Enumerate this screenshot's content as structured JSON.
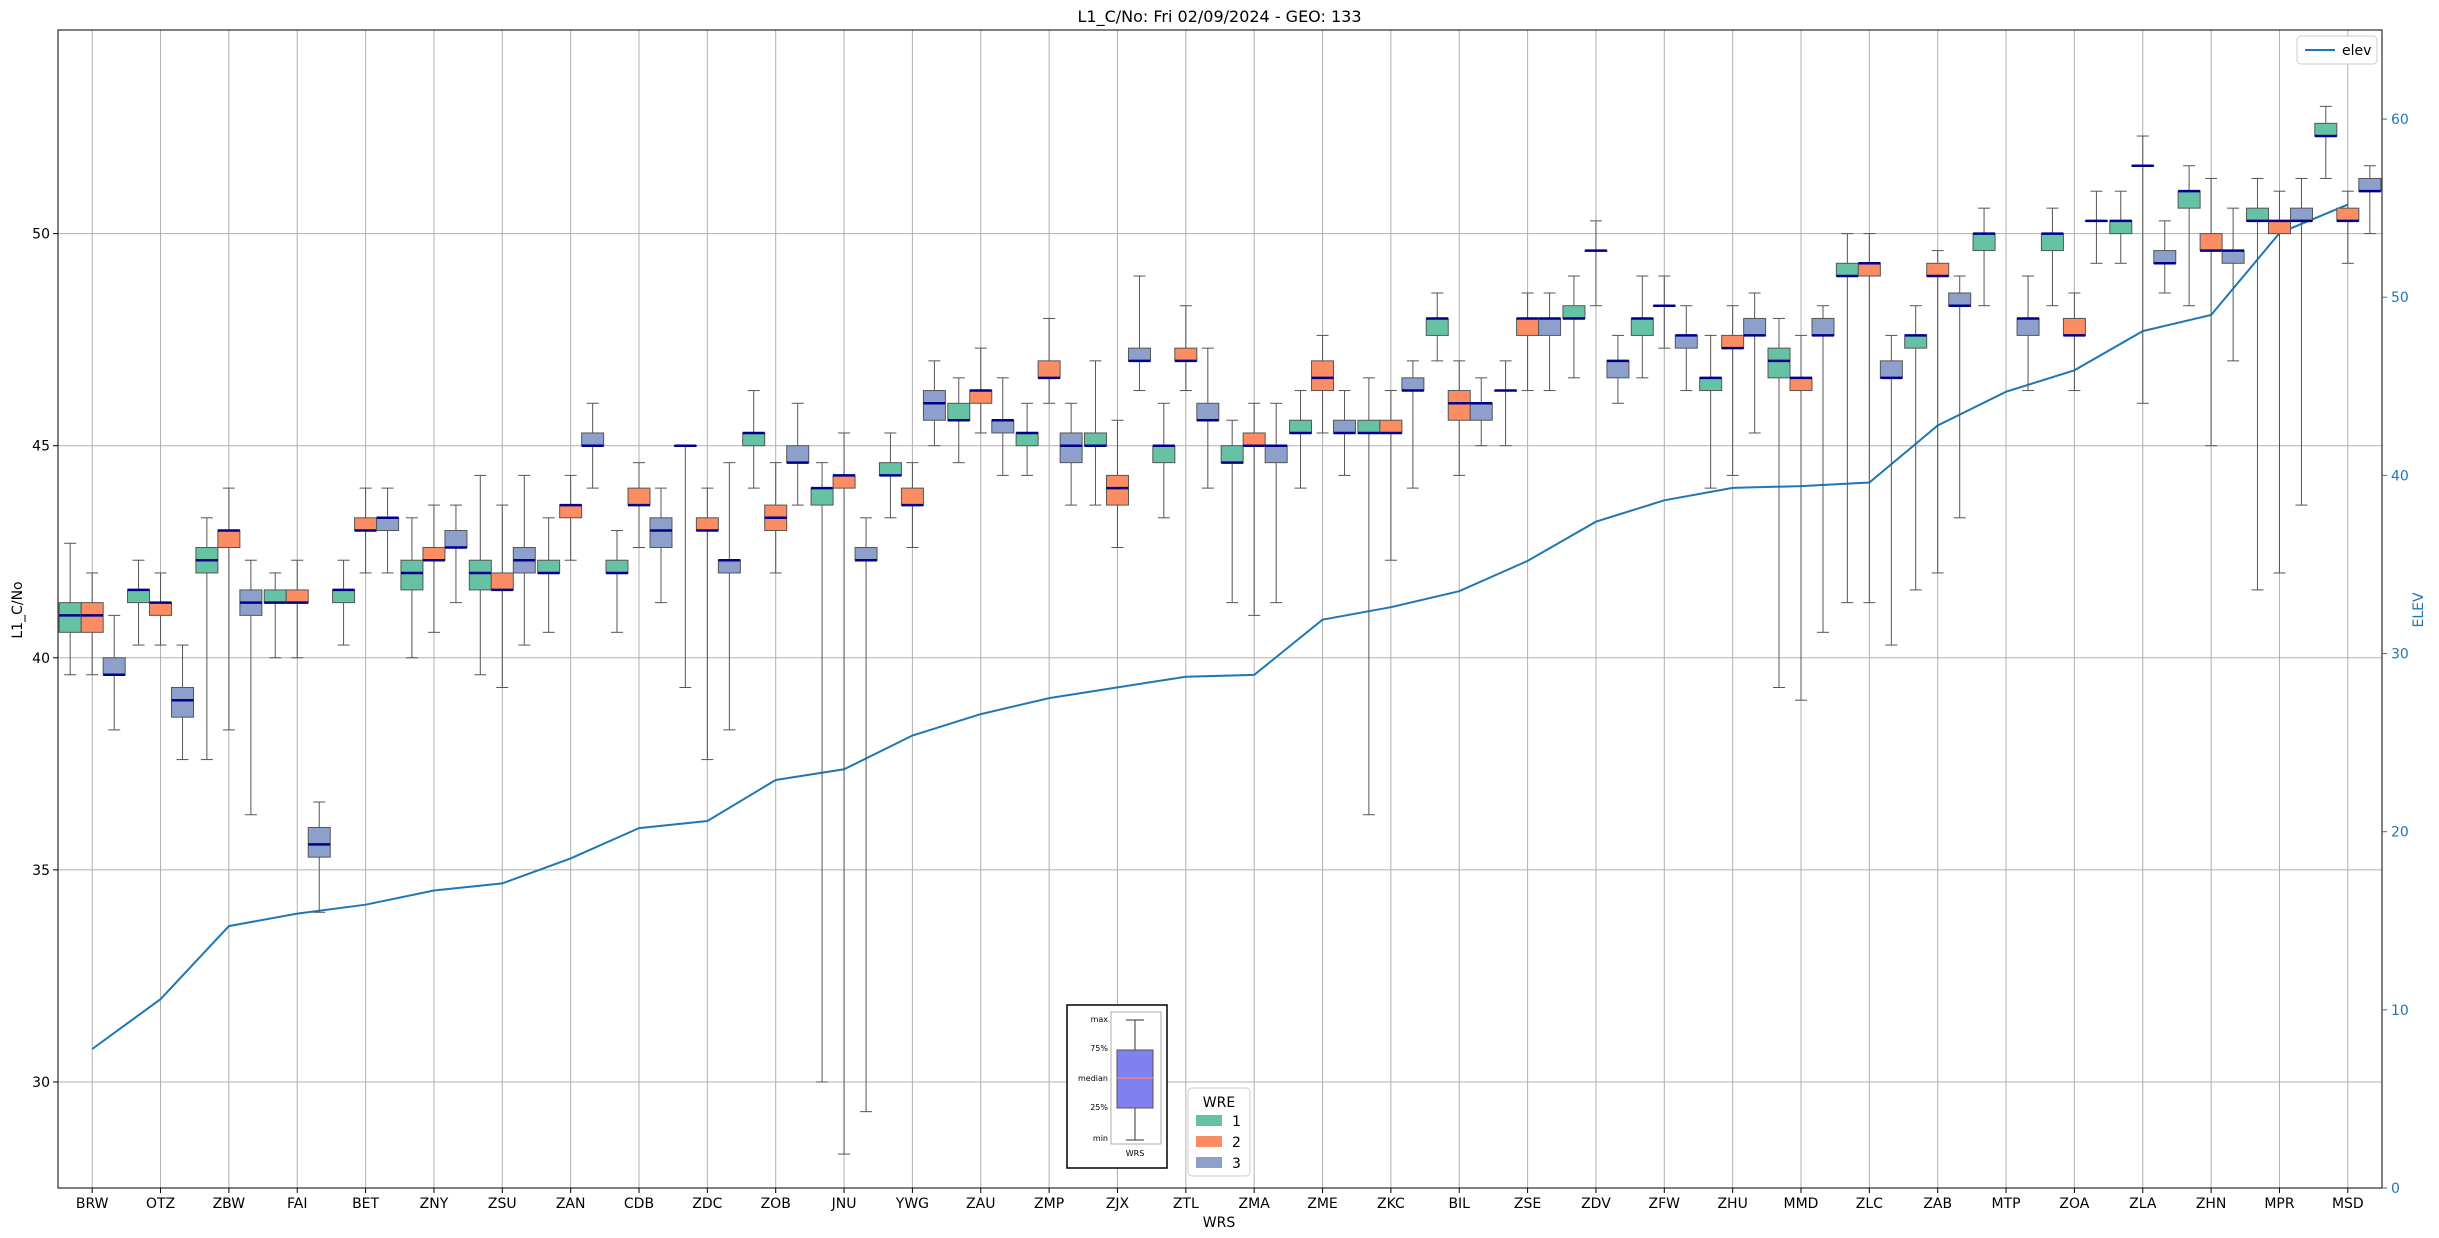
{
  "chart_data": {
    "type": "box",
    "title": "L1_C/No: Fri 02/09/2024 - GEO: 133",
    "xlabel": "WRS",
    "ylabel": "L1_C/No",
    "y2label": "ELEV",
    "ylim": [
      27.5,
      54.8
    ],
    "y2lim": [
      0,
      65
    ],
    "yticks": [
      30,
      35,
      40,
      45,
      50
    ],
    "y2ticks": [
      0,
      10,
      20,
      30,
      40,
      50,
      60
    ],
    "grid": true,
    "categories": [
      "BRW",
      "OTZ",
      "ZBW",
      "FAI",
      "BET",
      "ZNY",
      "ZSU",
      "ZAN",
      "CDB",
      "ZDC",
      "ZOB",
      "JNU",
      "YWG",
      "ZAU",
      "ZMP",
      "ZJX",
      "ZTL",
      "ZMA",
      "ZME",
      "ZKC",
      "BIL",
      "ZSE",
      "ZDV",
      "ZFW",
      "ZHU",
      "MMD",
      "ZLC",
      "ZAB",
      "MTP",
      "ZOA",
      "ZLA",
      "ZHN",
      "MPR",
      "MSD"
    ],
    "series_colors": {
      "1": "#66c2a5",
      "2": "#fc8d62",
      "3": "#8da0cb"
    },
    "median_color": "#00008b",
    "boxes": [
      {
        "station": "BRW",
        "wre": "1",
        "min": 39.6,
        "q1": 40.6,
        "median": 41.0,
        "q3": 41.3,
        "max": 42.7
      },
      {
        "station": "BRW",
        "wre": "2",
        "min": 39.6,
        "q1": 40.6,
        "median": 41.0,
        "q3": 41.3,
        "max": 42.0
      },
      {
        "station": "BRW",
        "wre": "3",
        "min": 38.3,
        "q1": 39.6,
        "median": 39.6,
        "q3": 40.0,
        "max": 41.0
      },
      {
        "station": "OTZ",
        "wre": "1",
        "min": 40.3,
        "q1": 41.3,
        "median": 41.6,
        "q3": 41.6,
        "max": 42.3
      },
      {
        "station": "OTZ",
        "wre": "2",
        "min": 40.3,
        "q1": 41.0,
        "median": 41.3,
        "q3": 41.3,
        "max": 42.0
      },
      {
        "station": "OTZ",
        "wre": "3",
        "min": 37.6,
        "q1": 38.6,
        "median": 39.0,
        "q3": 39.3,
        "max": 40.3
      },
      {
        "station": "ZBW",
        "wre": "1",
        "min": 37.6,
        "q1": 42.0,
        "median": 42.3,
        "q3": 42.6,
        "max": 43.3
      },
      {
        "station": "ZBW",
        "wre": "2",
        "min": 38.3,
        "q1": 42.6,
        "median": 43.0,
        "q3": 43.0,
        "max": 44.0
      },
      {
        "station": "ZBW",
        "wre": "3",
        "min": 36.3,
        "q1": 41.0,
        "median": 41.3,
        "q3": 41.6,
        "max": 42.3
      },
      {
        "station": "FAI",
        "wre": "1",
        "min": 40.0,
        "q1": 41.3,
        "median": 41.3,
        "q3": 41.6,
        "max": 42.0
      },
      {
        "station": "FAI",
        "wre": "2",
        "min": 40.0,
        "q1": 41.3,
        "median": 41.3,
        "q3": 41.6,
        "max": 42.3
      },
      {
        "station": "FAI",
        "wre": "3",
        "min": 34.0,
        "q1": 35.3,
        "median": 35.6,
        "q3": 36.0,
        "max": 36.6
      },
      {
        "station": "BET",
        "wre": "1",
        "min": 40.3,
        "q1": 41.3,
        "median": 41.6,
        "q3": 41.6,
        "max": 42.3
      },
      {
        "station": "BET",
        "wre": "2",
        "min": 42.0,
        "q1": 43.0,
        "median": 43.0,
        "q3": 43.3,
        "max": 44.0
      },
      {
        "station": "BET",
        "wre": "3",
        "min": 42.0,
        "q1": 43.0,
        "median": 43.3,
        "q3": 43.3,
        "max": 44.0
      },
      {
        "station": "ZNY",
        "wre": "1",
        "min": 40.0,
        "q1": 41.6,
        "median": 42.0,
        "q3": 42.3,
        "max": 43.3
      },
      {
        "station": "ZNY",
        "wre": "2",
        "min": 40.6,
        "q1": 42.3,
        "median": 42.3,
        "q3": 42.6,
        "max": 43.6
      },
      {
        "station": "ZNY",
        "wre": "3",
        "min": 41.3,
        "q1": 42.6,
        "median": 42.6,
        "q3": 43.0,
        "max": 43.6
      },
      {
        "station": "ZSU",
        "wre": "1",
        "min": 39.6,
        "q1": 41.6,
        "median": 42.0,
        "q3": 42.3,
        "max": 44.3
      },
      {
        "station": "ZSU",
        "wre": "2",
        "min": 39.3,
        "q1": 41.6,
        "median": 41.6,
        "q3": 42.0,
        "max": 43.6
      },
      {
        "station": "ZSU",
        "wre": "3",
        "min": 40.3,
        "q1": 42.0,
        "median": 42.3,
        "q3": 42.6,
        "max": 44.3
      },
      {
        "station": "ZAN",
        "wre": "1",
        "min": 40.6,
        "q1": 42.0,
        "median": 42.0,
        "q3": 42.3,
        "max": 43.3
      },
      {
        "station": "ZAN",
        "wre": "2",
        "min": 42.3,
        "q1": 43.3,
        "median": 43.6,
        "q3": 43.6,
        "max": 44.3
      },
      {
        "station": "ZAN",
        "wre": "3",
        "min": 44.0,
        "q1": 45.0,
        "median": 45.0,
        "q3": 45.3,
        "max": 46.0
      },
      {
        "station": "CDB",
        "wre": "1",
        "min": 40.6,
        "q1": 42.0,
        "median": 42.0,
        "q3": 42.3,
        "max": 43.0
      },
      {
        "station": "CDB",
        "wre": "2",
        "min": 42.6,
        "q1": 43.6,
        "median": 43.6,
        "q3": 44.0,
        "max": 44.6
      },
      {
        "station": "CDB",
        "wre": "3",
        "min": 41.3,
        "q1": 42.6,
        "median": 43.0,
        "q3": 43.3,
        "max": 44.0
      },
      {
        "station": "ZDC",
        "wre": "1",
        "min": 39.3,
        "q1": 45.0,
        "median": 45.0,
        "q3": 45.0,
        "max": 45.0
      },
      {
        "station": "ZDC",
        "wre": "2",
        "min": 37.6,
        "q1": 43.0,
        "median": 43.0,
        "q3": 43.3,
        "max": 44.0
      },
      {
        "station": "ZDC",
        "wre": "3",
        "min": 38.3,
        "q1": 42.0,
        "median": 42.3,
        "q3": 42.3,
        "max": 44.6
      },
      {
        "station": "ZOB",
        "wre": "1",
        "min": 44.0,
        "q1": 45.0,
        "median": 45.3,
        "q3": 45.3,
        "max": 46.3
      },
      {
        "station": "ZOB",
        "wre": "2",
        "min": 42.0,
        "q1": 43.0,
        "median": 43.3,
        "q3": 43.6,
        "max": 44.6
      },
      {
        "station": "ZOB",
        "wre": "3",
        "min": 43.6,
        "q1": 44.6,
        "median": 44.6,
        "q3": 45.0,
        "max": 46.0
      },
      {
        "station": "JNU",
        "wre": "1",
        "min": 30.0,
        "q1": 43.6,
        "median": 44.0,
        "q3": 44.0,
        "max": 44.6
      },
      {
        "station": "JNU",
        "wre": "2",
        "min": 28.3,
        "q1": 44.0,
        "median": 44.3,
        "q3": 44.3,
        "max": 45.3
      },
      {
        "station": "JNU",
        "wre": "3",
        "min": 29.3,
        "q1": 42.3,
        "median": 42.3,
        "q3": 42.6,
        "max": 43.3
      },
      {
        "station": "YWG",
        "wre": "1",
        "min": 43.3,
        "q1": 44.3,
        "median": 44.3,
        "q3": 44.6,
        "max": 45.3
      },
      {
        "station": "YWG",
        "wre": "2",
        "min": 42.6,
        "q1": 43.6,
        "median": 43.6,
        "q3": 44.0,
        "max": 44.6
      },
      {
        "station": "YWG",
        "wre": "3",
        "min": 45.0,
        "q1": 45.6,
        "median": 46.0,
        "q3": 46.3,
        "max": 47.0
      },
      {
        "station": "ZAU",
        "wre": "1",
        "min": 44.6,
        "q1": 45.6,
        "median": 45.6,
        "q3": 46.0,
        "max": 46.6
      },
      {
        "station": "ZAU",
        "wre": "2",
        "min": 45.3,
        "q1": 46.0,
        "median": 46.3,
        "q3": 46.3,
        "max": 47.3
      },
      {
        "station": "ZAU",
        "wre": "3",
        "min": 44.3,
        "q1": 45.3,
        "median": 45.6,
        "q3": 45.6,
        "max": 46.6
      },
      {
        "station": "ZMP",
        "wre": "1",
        "min": 44.3,
        "q1": 45.0,
        "median": 45.3,
        "q3": 45.3,
        "max": 46.0
      },
      {
        "station": "ZMP",
        "wre": "2",
        "min": 46.0,
        "q1": 46.6,
        "median": 46.6,
        "q3": 47.0,
        "max": 48.0
      },
      {
        "station": "ZMP",
        "wre": "3",
        "min": 43.6,
        "q1": 44.6,
        "median": 45.0,
        "q3": 45.3,
        "max": 46.0
      },
      {
        "station": "ZJX",
        "wre": "1",
        "min": 43.6,
        "q1": 45.0,
        "median": 45.0,
        "q3": 45.3,
        "max": 47.0
      },
      {
        "station": "ZJX",
        "wre": "2",
        "min": 42.6,
        "q1": 43.6,
        "median": 44.0,
        "q3": 44.3,
        "max": 45.6
      },
      {
        "station": "ZJX",
        "wre": "3",
        "min": 46.3,
        "q1": 47.0,
        "median": 47.0,
        "q3": 47.3,
        "max": 49.0
      },
      {
        "station": "ZTL",
        "wre": "1",
        "min": 43.3,
        "q1": 44.6,
        "median": 45.0,
        "q3": 45.0,
        "max": 46.0
      },
      {
        "station": "ZTL",
        "wre": "2",
        "min": 46.3,
        "q1": 47.0,
        "median": 47.0,
        "q3": 47.3,
        "max": 48.3
      },
      {
        "station": "ZTL",
        "wre": "3",
        "min": 44.0,
        "q1": 45.6,
        "median": 45.6,
        "q3": 46.0,
        "max": 47.3
      },
      {
        "station": "ZMA",
        "wre": "1",
        "min": 41.3,
        "q1": 44.6,
        "median": 44.6,
        "q3": 45.0,
        "max": 45.6
      },
      {
        "station": "ZMA",
        "wre": "2",
        "min": 41.0,
        "q1": 45.0,
        "median": 45.0,
        "q3": 45.3,
        "max": 46.0
      },
      {
        "station": "ZMA",
        "wre": "3",
        "min": 41.3,
        "q1": 44.6,
        "median": 45.0,
        "q3": 45.0,
        "max": 46.0
      },
      {
        "station": "ZME",
        "wre": "1",
        "min": 44.0,
        "q1": 45.3,
        "median": 45.3,
        "q3": 45.6,
        "max": 46.3
      },
      {
        "station": "ZME",
        "wre": "2",
        "min": 45.3,
        "q1": 46.3,
        "median": 46.6,
        "q3": 47.0,
        "max": 47.6
      },
      {
        "station": "ZME",
        "wre": "3",
        "min": 44.3,
        "q1": 45.3,
        "median": 45.3,
        "q3": 45.6,
        "max": 46.3
      },
      {
        "station": "ZKC",
        "wre": "1",
        "min": 36.3,
        "q1": 45.3,
        "median": 45.3,
        "q3": 45.6,
        "max": 46.6
      },
      {
        "station": "ZKC",
        "wre": "2",
        "min": 42.3,
        "q1": 45.3,
        "median": 45.3,
        "q3": 45.6,
        "max": 46.3
      },
      {
        "station": "ZKC",
        "wre": "3",
        "min": 44.0,
        "q1": 46.3,
        "median": 46.3,
        "q3": 46.6,
        "max": 47.0
      },
      {
        "station": "BIL",
        "wre": "1",
        "min": 47.0,
        "q1": 47.6,
        "median": 48.0,
        "q3": 48.0,
        "max": 48.6
      },
      {
        "station": "BIL",
        "wre": "2",
        "min": 44.3,
        "q1": 45.6,
        "median": 46.0,
        "q3": 46.3,
        "max": 47.0
      },
      {
        "station": "BIL",
        "wre": "3",
        "min": 45.0,
        "q1": 45.6,
        "median": 46.0,
        "q3": 46.0,
        "max": 46.6
      },
      {
        "station": "ZSE",
        "wre": "1",
        "min": 45.0,
        "q1": 46.3,
        "median": 46.3,
        "q3": 46.3,
        "max": 47.0
      },
      {
        "station": "ZSE",
        "wre": "2",
        "min": 46.3,
        "q1": 47.6,
        "median": 48.0,
        "q3": 48.0,
        "max": 48.6
      },
      {
        "station": "ZSE",
        "wre": "3",
        "min": 46.3,
        "q1": 47.6,
        "median": 48.0,
        "q3": 48.0,
        "max": 48.6
      },
      {
        "station": "ZDV",
        "wre": "1",
        "min": 46.6,
        "q1": 48.0,
        "median": 48.0,
        "q3": 48.3,
        "max": 49.0
      },
      {
        "station": "ZDV",
        "wre": "2",
        "min": 48.3,
        "q1": 49.6,
        "median": 49.6,
        "q3": 49.6,
        "max": 50.3
      },
      {
        "station": "ZDV",
        "wre": "3",
        "min": 46.0,
        "q1": 46.6,
        "median": 47.0,
        "q3": 47.0,
        "max": 47.6
      },
      {
        "station": "ZFW",
        "wre": "1",
        "min": 46.6,
        "q1": 47.6,
        "median": 48.0,
        "q3": 48.0,
        "max": 49.0
      },
      {
        "station": "ZFW",
        "wre": "2",
        "min": 47.3,
        "q1": 48.3,
        "median": 48.3,
        "q3": 48.3,
        "max": 49.0
      },
      {
        "station": "ZFW",
        "wre": "3",
        "min": 46.3,
        "q1": 47.3,
        "median": 47.6,
        "q3": 47.6,
        "max": 48.3
      },
      {
        "station": "ZHU",
        "wre": "1",
        "min": 44.0,
        "q1": 46.3,
        "median": 46.6,
        "q3": 46.6,
        "max": 47.6
      },
      {
        "station": "ZHU",
        "wre": "2",
        "min": 44.3,
        "q1": 47.3,
        "median": 47.3,
        "q3": 47.6,
        "max": 48.3
      },
      {
        "station": "ZHU",
        "wre": "3",
        "min": 45.3,
        "q1": 47.6,
        "median": 47.6,
        "q3": 48.0,
        "max": 48.6
      },
      {
        "station": "MMD",
        "wre": "1",
        "min": 39.3,
        "q1": 46.6,
        "median": 47.0,
        "q3": 47.3,
        "max": 48.0
      },
      {
        "station": "MMD",
        "wre": "2",
        "min": 39.0,
        "q1": 46.3,
        "median": 46.6,
        "q3": 46.6,
        "max": 47.6
      },
      {
        "station": "MMD",
        "wre": "3",
        "min": 40.6,
        "q1": 47.6,
        "median": 47.6,
        "q3": 48.0,
        "max": 48.3
      },
      {
        "station": "ZLC",
        "wre": "1",
        "min": 41.3,
        "q1": 49.0,
        "median": 49.0,
        "q3": 49.3,
        "max": 50.0
      },
      {
        "station": "ZLC",
        "wre": "2",
        "min": 41.3,
        "q1": 49.0,
        "median": 49.3,
        "q3": 49.3,
        "max": 50.0
      },
      {
        "station": "ZLC",
        "wre": "3",
        "min": 40.3,
        "q1": 46.6,
        "median": 46.6,
        "q3": 47.0,
        "max": 47.6
      },
      {
        "station": "ZAB",
        "wre": "1",
        "min": 41.6,
        "q1": 47.3,
        "median": 47.6,
        "q3": 47.6,
        "max": 48.3
      },
      {
        "station": "ZAB",
        "wre": "2",
        "min": 42.0,
        "q1": 49.0,
        "median": 49.0,
        "q3": 49.3,
        "max": 49.6
      },
      {
        "station": "ZAB",
        "wre": "3",
        "min": 43.3,
        "q1": 48.3,
        "median": 48.3,
        "q3": 48.6,
        "max": 49.0
      },
      {
        "station": "MTP",
        "wre": "1",
        "min": 48.3,
        "q1": 49.6,
        "median": 50.0,
        "q3": 50.0,
        "max": 50.6
      },
      {
        "station": "MTP",
        "wre": "3",
        "min": 46.3,
        "q1": 47.6,
        "median": 48.0,
        "q3": 48.0,
        "max": 49.0
      },
      {
        "station": "ZOA",
        "wre": "1",
        "min": 48.3,
        "q1": 49.6,
        "median": 50.0,
        "q3": 50.0,
        "max": 50.6
      },
      {
        "station": "ZOA",
        "wre": "2",
        "min": 46.3,
        "q1": 47.6,
        "median": 47.6,
        "q3": 48.0,
        "max": 48.6
      },
      {
        "station": "ZOA",
        "wre": "3",
        "min": 49.3,
        "q1": 50.3,
        "median": 50.3,
        "q3": 50.3,
        "max": 51.0
      },
      {
        "station": "ZLA",
        "wre": "1",
        "min": 49.3,
        "q1": 50.0,
        "median": 50.3,
        "q3": 50.3,
        "max": 51.0
      },
      {
        "station": "ZLA",
        "wre": "2",
        "min": 46.0,
        "q1": 51.6,
        "median": 51.6,
        "q3": 51.6,
        "max": 52.3
      },
      {
        "station": "ZLA",
        "wre": "3",
        "min": 48.6,
        "q1": 49.3,
        "median": 49.3,
        "q3": 49.6,
        "max": 50.3
      },
      {
        "station": "ZHN",
        "wre": "1",
        "min": 48.3,
        "q1": 50.6,
        "median": 51.0,
        "q3": 51.0,
        "max": 51.6
      },
      {
        "station": "ZHN",
        "wre": "2",
        "min": 45.0,
        "q1": 49.6,
        "median": 49.6,
        "q3": 50.0,
        "max": 51.3
      },
      {
        "station": "ZHN",
        "wre": "3",
        "min": 47.0,
        "q1": 49.3,
        "median": 49.6,
        "q3": 49.6,
        "max": 50.6
      },
      {
        "station": "MPR",
        "wre": "1",
        "min": 41.6,
        "q1": 50.3,
        "median": 50.3,
        "q3": 50.6,
        "max": 51.3
      },
      {
        "station": "MPR",
        "wre": "2",
        "min": 42.0,
        "q1": 50.0,
        "median": 50.3,
        "q3": 50.3,
        "max": 51.0
      },
      {
        "station": "MPR",
        "wre": "3",
        "min": 43.6,
        "q1": 50.3,
        "median": 50.3,
        "q3": 50.6,
        "max": 51.3
      },
      {
        "station": "MSD",
        "wre": "1",
        "min": 51.3,
        "q1": 52.3,
        "median": 52.3,
        "q3": 52.6,
        "max": 53.0
      },
      {
        "station": "MSD",
        "wre": "2",
        "min": 49.3,
        "q1": 50.3,
        "median": 50.3,
        "q3": 50.6,
        "max": 51.0
      },
      {
        "station": "MSD",
        "wre": "3",
        "min": 50.0,
        "q1": 51.0,
        "median": 51.0,
        "q3": 51.3,
        "max": 51.6
      }
    ],
    "elev_line": {
      "name": "elev",
      "color": "#1f77b4",
      "values": [
        7.8,
        10.6,
        14.7,
        15.4,
        15.9,
        16.7,
        17.1,
        18.5,
        20.2,
        20.6,
        22.9,
        23.5,
        25.4,
        26.6,
        27.5,
        28.1,
        28.7,
        28.8,
        31.9,
        32.6,
        33.5,
        35.2,
        37.4,
        38.6,
        39.3,
        39.4,
        39.6,
        42.8,
        44.7,
        45.9,
        48.1,
        49.0,
        53.6,
        55.2
      ]
    },
    "legend_line": {
      "position": "top-right",
      "label": "elev"
    },
    "legend_wre": {
      "title": "WRE",
      "labels": [
        "1",
        "2",
        "3"
      ],
      "position": "bottom-center"
    },
    "legend_box_guide": {
      "labels": [
        "max",
        "75%",
        "median",
        "25%",
        "min"
      ],
      "caption": "WRS",
      "position": "bottom-center"
    }
  }
}
